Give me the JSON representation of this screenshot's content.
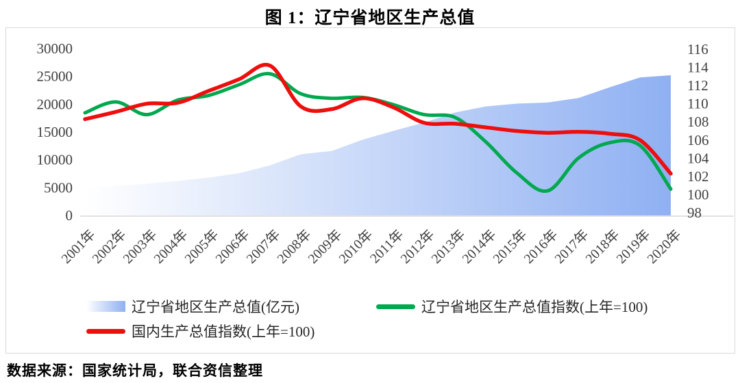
{
  "page": {
    "title": "图 1：辽宁省地区生产总值",
    "source": "数据来源：国家统计局，联合资信整理"
  },
  "chart_data": {
    "type": "area+line combo",
    "title": "图 1：辽宁省地区生产总值",
    "categories": [
      "2001年",
      "2002年",
      "2003年",
      "2004年",
      "2005年",
      "2006年",
      "2007年",
      "2008年",
      "2009年",
      "2010年",
      "2011年",
      "2012年",
      "2013年",
      "2014年",
      "2015年",
      "2016年",
      "2017年",
      "2018年",
      "2019年",
      "2020年"
    ],
    "series": [
      {
        "name": "辽宁省地区生产总值(亿元)",
        "type": "area",
        "axis": "left",
        "color_start": "#ffffff",
        "color_end": "#8fb0f2",
        "values": [
          4900,
          5300,
          5700,
          6200,
          6800,
          7600,
          9000,
          11000,
          11600,
          13600,
          15200,
          16700,
          18500,
          19600,
          20100,
          20300,
          21100,
          23000,
          24800,
          25200
        ]
      },
      {
        "name": "辽宁省地区生产总值指数(上年=100)",
        "type": "line",
        "axis": "right",
        "color": "#00a84f",
        "values": [
          109.0,
          110.2,
          108.8,
          110.4,
          110.9,
          112.1,
          113.3,
          111.1,
          110.6,
          110.7,
          109.9,
          108.8,
          108.5,
          105.8,
          102.4,
          100.4,
          104.0,
          105.7,
          105.4,
          100.6
        ]
      },
      {
        "name": "国内生产总值指数(上年=100)",
        "type": "line",
        "axis": "right",
        "color": "#ed0e0e",
        "values": [
          108.3,
          109.1,
          110.0,
          110.1,
          111.4,
          112.7,
          114.2,
          109.7,
          109.4,
          110.6,
          109.6,
          107.9,
          107.8,
          107.4,
          107.0,
          106.8,
          106.9,
          106.7,
          106.0,
          102.3
        ]
      }
    ],
    "left_axis": {
      "ticks": [
        0,
        5000,
        10000,
        15000,
        20000,
        25000,
        30000
      ],
      "range": [
        0,
        30000
      ]
    },
    "right_axis": {
      "ticks": [
        98,
        100,
        102,
        104,
        106,
        108,
        110,
        112,
        114,
        116
      ],
      "range": [
        98,
        116
      ]
    },
    "legend_position": "bottom-inside",
    "grid": false,
    "axis_text_color": "#3f3f3f"
  }
}
